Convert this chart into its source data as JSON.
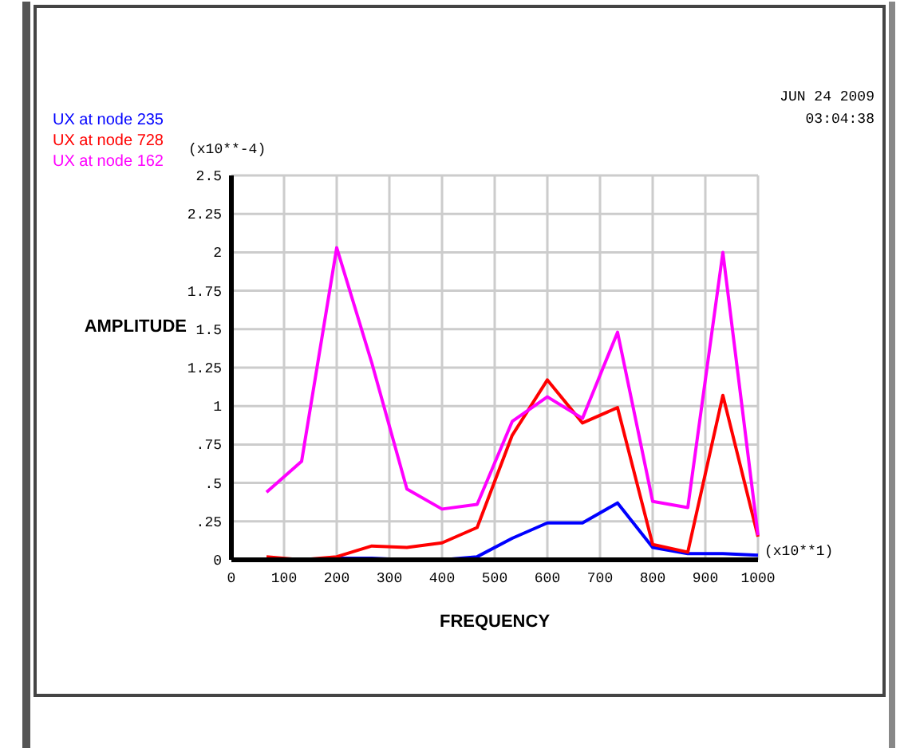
{
  "chart_data": {
    "type": "line",
    "xlabel": "FREQUENCY",
    "ylabel": "AMPLITUDE",
    "x": [
      66.7,
      133.3,
      200,
      266.7,
      333.3,
      400,
      466.7,
      533.3,
      600,
      666.7,
      733.3,
      800,
      866.7,
      933.3,
      1000
    ],
    "xlim": [
      0,
      1000
    ],
    "xticks": [
      0,
      100,
      200,
      300,
      400,
      500,
      600,
      700,
      800,
      900,
      1000
    ],
    "ylim": [
      0,
      2.5
    ],
    "yticks": [
      0,
      {
        "value": 0.25,
        "label": ".25"
      },
      {
        "value": 0.5,
        "label": ".5"
      },
      {
        "value": 0.75,
        "label": ".75"
      },
      1,
      1.25,
      1.5,
      1.75,
      2,
      2.25,
      2.5
    ],
    "grid": true,
    "legend": "top left",
    "marker": "none",
    "line_style": "solid",
    "series": [
      {
        "name": "UX at node 235",
        "color": "#0000ff",
        "values": [
          0,
          0,
          0.01,
          0.01,
          0,
          0,
          0.02,
          0.14,
          0.24,
          0.24,
          0.37,
          0.08,
          0.04,
          0.04,
          0.03
        ]
      },
      {
        "name": "UX at node 728",
        "color": "#ff0000",
        "values": [
          0.02,
          0,
          0.02,
          0.09,
          0.08,
          0.11,
          0.21,
          0.81,
          1.17,
          0.89,
          0.99,
          0.1,
          0.05,
          1.07,
          0.15
        ]
      },
      {
        "name": "UX at node 162",
        "color": "#ff00ff",
        "values": [
          0.44,
          0.64,
          2.03,
          1.28,
          0.46,
          0.33,
          0.36,
          0.9,
          1.06,
          0.92,
          1.48,
          0.38,
          0.34,
          2.0,
          0.16
        ]
      }
    ],
    "annotations": [
      "(x10**-4)",
      "(x10**1)",
      "JUN 24 2009",
      "03:04:38"
    ]
  }
}
